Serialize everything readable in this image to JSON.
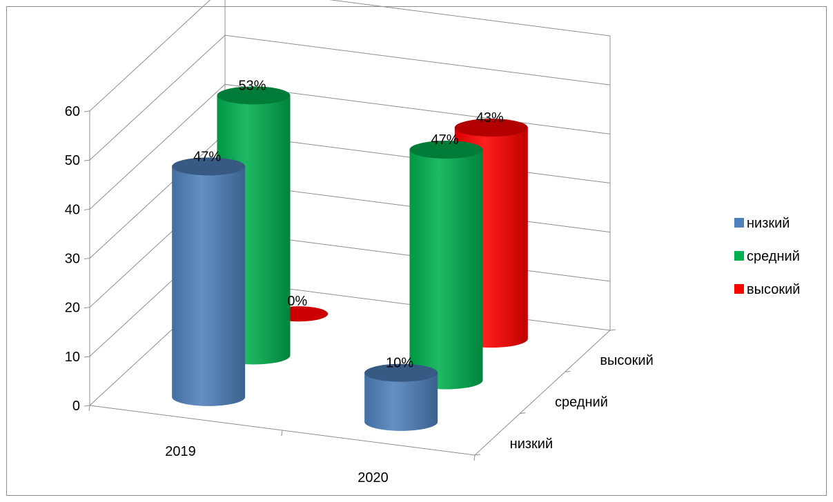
{
  "chart_data": {
    "type": "bar",
    "style": "3d-cylinder",
    "categories": [
      "2019",
      "2020"
    ],
    "depth_labels": [
      "низкий",
      "средний",
      "высокий"
    ],
    "series": [
      {
        "name": "низкий",
        "color": "#4f81bd",
        "values": [
          47,
          10
        ],
        "labels": [
          "47%",
          "10%"
        ]
      },
      {
        "name": "средний",
        "color": "#00b050",
        "values": [
          53,
          47
        ],
        "labels": [
          "53%",
          "47%"
        ]
      },
      {
        "name": "высокий",
        "color": "#ff0000",
        "values": [
          0,
          43
        ],
        "labels": [
          "0%",
          "43%"
        ]
      }
    ],
    "ylim": [
      0,
      60
    ],
    "yticks": [
      "0",
      "10",
      "20",
      "30",
      "40",
      "50",
      "60"
    ],
    "grid": true,
    "legend": "right",
    "title": "",
    "xlabel": "",
    "ylabel": ""
  }
}
